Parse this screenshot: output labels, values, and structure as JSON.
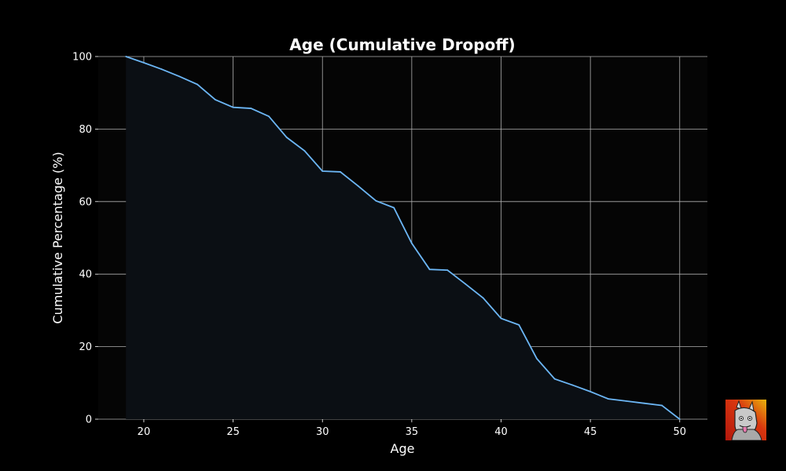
{
  "chart_data": {
    "type": "area",
    "title": "Age (Cumulative Dropoff)",
    "xlabel": "Age",
    "ylabel": "Cumulative Percentage (%)",
    "xlim": [
      17.45,
      51.55
    ],
    "ylim": [
      0,
      100
    ],
    "x_ticks": [
      20,
      25,
      30,
      35,
      40,
      45,
      50
    ],
    "y_ticks": [
      0,
      20,
      40,
      60,
      80,
      100
    ],
    "grid": true,
    "x": [
      19,
      20,
      21,
      22,
      23,
      24,
      25,
      26,
      27,
      28,
      29,
      30,
      31,
      32,
      33,
      34,
      35,
      36,
      37,
      38,
      39,
      40,
      41,
      42,
      43,
      44,
      45,
      46,
      47,
      48,
      49,
      50
    ],
    "series": [
      {
        "values": [
          100,
          98.3,
          96.5,
          94.5,
          92.3,
          88.1,
          86.0,
          85.7,
          83.5,
          77.7,
          74.0,
          68.4,
          68.2,
          64.3,
          60.2,
          58.3,
          48.5,
          41.3,
          41.1,
          37.3,
          33.4,
          27.8,
          26.0,
          16.7,
          11.1,
          9.4,
          7.6,
          5.6,
          5.0,
          4.4,
          3.8,
          0
        ]
      }
    ],
    "colors": {
      "line": "#6cb6f5",
      "fill": "#0b0f14",
      "grid": "#b0b0b0",
      "background": "#000000",
      "plot_background": "#050505",
      "text": "#ffffff"
    }
  },
  "badge": {
    "icon": "llama-avatar-icon"
  }
}
